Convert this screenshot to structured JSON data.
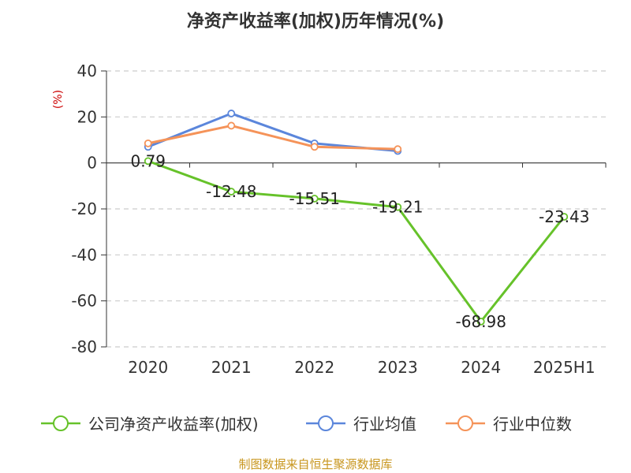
{
  "chart_data": {
    "type": "line",
    "title": "净资产收益率(加权)历年情况(%)",
    "ylabel": "(%)",
    "categories": [
      "2020",
      "2021",
      "2022",
      "2023",
      "2024",
      "2025H1"
    ],
    "ylim": [
      -80,
      40
    ],
    "yticks": [
      40,
      20,
      0,
      -20,
      -40,
      -60,
      -80
    ],
    "grid": true,
    "legend_position": "bottom",
    "series": [
      {
        "name": "公司净资产收益率(加权)",
        "color": "#66c22a",
        "values": [
          0.79,
          -12.48,
          -15.51,
          -19.21,
          -68.98,
          -23.43
        ],
        "labels": [
          "0.79",
          "-12.48",
          "-15.51",
          "-19.21",
          "-68.98",
          "-23.43"
        ]
      },
      {
        "name": "行业均值",
        "color": "#5b86db",
        "values": [
          7.0,
          21.5,
          8.5,
          5.2,
          null,
          null
        ]
      },
      {
        "name": "行业中位数",
        "color": "#f59359",
        "values": [
          8.5,
          16.2,
          7.0,
          6.0,
          null,
          null
        ]
      }
    ]
  },
  "footer": {
    "source": "制图数据来自恒生聚源数据库"
  }
}
